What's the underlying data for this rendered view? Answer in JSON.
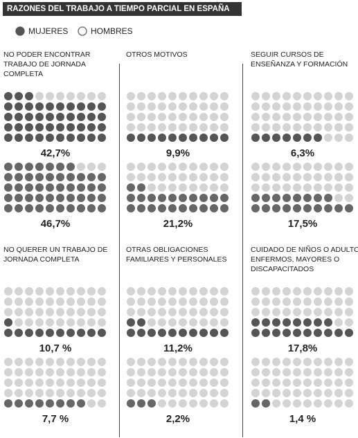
{
  "chart_data": {
    "type": "pictogram",
    "title": "RAZONES DEL TRABAJO A TIEMPO PARCIAL EN ESPAÑA",
    "categories": [
      "NO PODER ENCONTRAR TRABAJO DE JORNADA COMPLETA",
      "OTROS MOTIVOS",
      "SEGUIR CURSOS DE ENSEÑANZA Y FORMACIÓN",
      "NO QUERER UN TRABAJO DE JORNADA COMPLETA",
      "OTRAS OBLIGACIONES FAMILIARES Y PERSONALES",
      "CUIDADO DE NIÑOS O ADULTOS ENFERMOS, MAYORES O DISCAPACITADOS"
    ],
    "series": [
      {
        "name": "MUJERES",
        "color": "#555555",
        "values": [
          42.7,
          9.9,
          6.3,
          10.7,
          11.2,
          17.8
        ],
        "value_labels": [
          "42,7%",
          "9,9%",
          "6,3%",
          "10,7 %",
          "11,2%",
          "17,8%"
        ]
      },
      {
        "name": "HOMBRES",
        "color": "#666666",
        "values": [
          46.7,
          21.2,
          17.5,
          7.7,
          2.2,
          1.4
        ],
        "value_labels": [
          "46,7%",
          "21,2%",
          "17,5%",
          "7,7 %",
          "2,2%",
          "1,4 %"
        ]
      }
    ]
  }
}
